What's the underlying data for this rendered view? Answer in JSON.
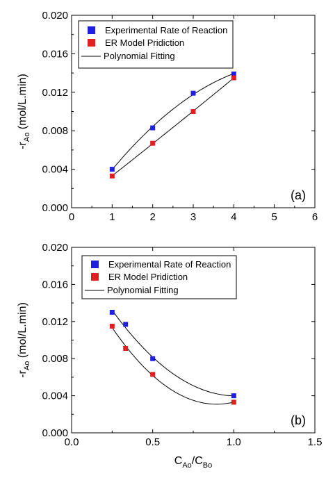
{
  "chart_data": [
    {
      "type": "scatter",
      "panel_label": "(a)",
      "xlabel": "",
      "ylabel": "-rAo (mol/L.min)",
      "ylabel_main": "-r",
      "ylabel_sub": "Ao",
      "ylabel_rest": " (mol/L.min)",
      "xlim": [
        0,
        6
      ],
      "ylim": [
        0.0,
        0.02
      ],
      "xticks": [
        0,
        1,
        2,
        3,
        4,
        5,
        6
      ],
      "xtick_labels": [
        "0",
        "1",
        "2",
        "3",
        "4",
        "5",
        "6"
      ],
      "yticks": [
        0.0,
        0.004,
        0.008,
        0.012,
        0.016,
        0.02
      ],
      "ytick_labels": [
        "0.000",
        "0.004",
        "0.008",
        "0.012",
        "0.016",
        "0.020"
      ],
      "legend_position": "top-left",
      "legend": [
        "Experimental Rate of Reaction",
        "ER Model Pridiction",
        "Polynomial Fitting"
      ],
      "series": [
        {
          "name": "Experimental Rate of Reaction",
          "color": "#1f1fe0",
          "marker": "square",
          "x": [
            1,
            2,
            3,
            4
          ],
          "values": [
            0.004,
            0.0083,
            0.0119,
            0.0139
          ]
        },
        {
          "name": "ER Model Pridiction",
          "color": "#e01f1f",
          "marker": "square",
          "x": [
            1,
            2,
            3,
            4
          ],
          "values": [
            0.0033,
            0.0067,
            0.01,
            0.0135
          ]
        }
      ]
    },
    {
      "type": "scatter",
      "panel_label": "(b)",
      "xlabel": "CAo/CBo",
      "xlabel_a": "C",
      "xlabel_a_sub": "Ao",
      "xlabel_mid": "/C",
      "xlabel_b_sub": "Bo",
      "ylabel": "-rAo (mol/L.min)",
      "ylabel_main": "-r",
      "ylabel_sub": "Ao",
      "ylabel_rest": " (mol/L.min)",
      "xlim": [
        0,
        1.5
      ],
      "ylim": [
        0.0,
        0.02
      ],
      "xticks": [
        0,
        0.5,
        1.0,
        1.5
      ],
      "xtick_labels": [
        "0.0",
        "0.5",
        "1.0",
        "1.5"
      ],
      "yticks": [
        0.0,
        0.004,
        0.008,
        0.012,
        0.016,
        0.02
      ],
      "ytick_labels": [
        "0.000",
        "0.004",
        "0.008",
        "0.012",
        "0.016",
        "0.020"
      ],
      "legend_position": "top-left",
      "legend": [
        "Experimental Rate of Reaction",
        "ER Model Pridiction",
        "Polynomial Fitting"
      ],
      "series": [
        {
          "name": "Experimental Rate of Reaction",
          "color": "#1f1fe0",
          "marker": "square",
          "x": [
            0.25,
            0.333,
            0.5,
            1.0
          ],
          "values": [
            0.013,
            0.0117,
            0.008,
            0.004
          ]
        },
        {
          "name": "ER Model Pridiction",
          "color": "#e01f1f",
          "marker": "square",
          "x": [
            0.25,
            0.333,
            0.5,
            1.0
          ],
          "values": [
            0.0115,
            0.0091,
            0.0063,
            0.0033
          ]
        }
      ]
    }
  ]
}
